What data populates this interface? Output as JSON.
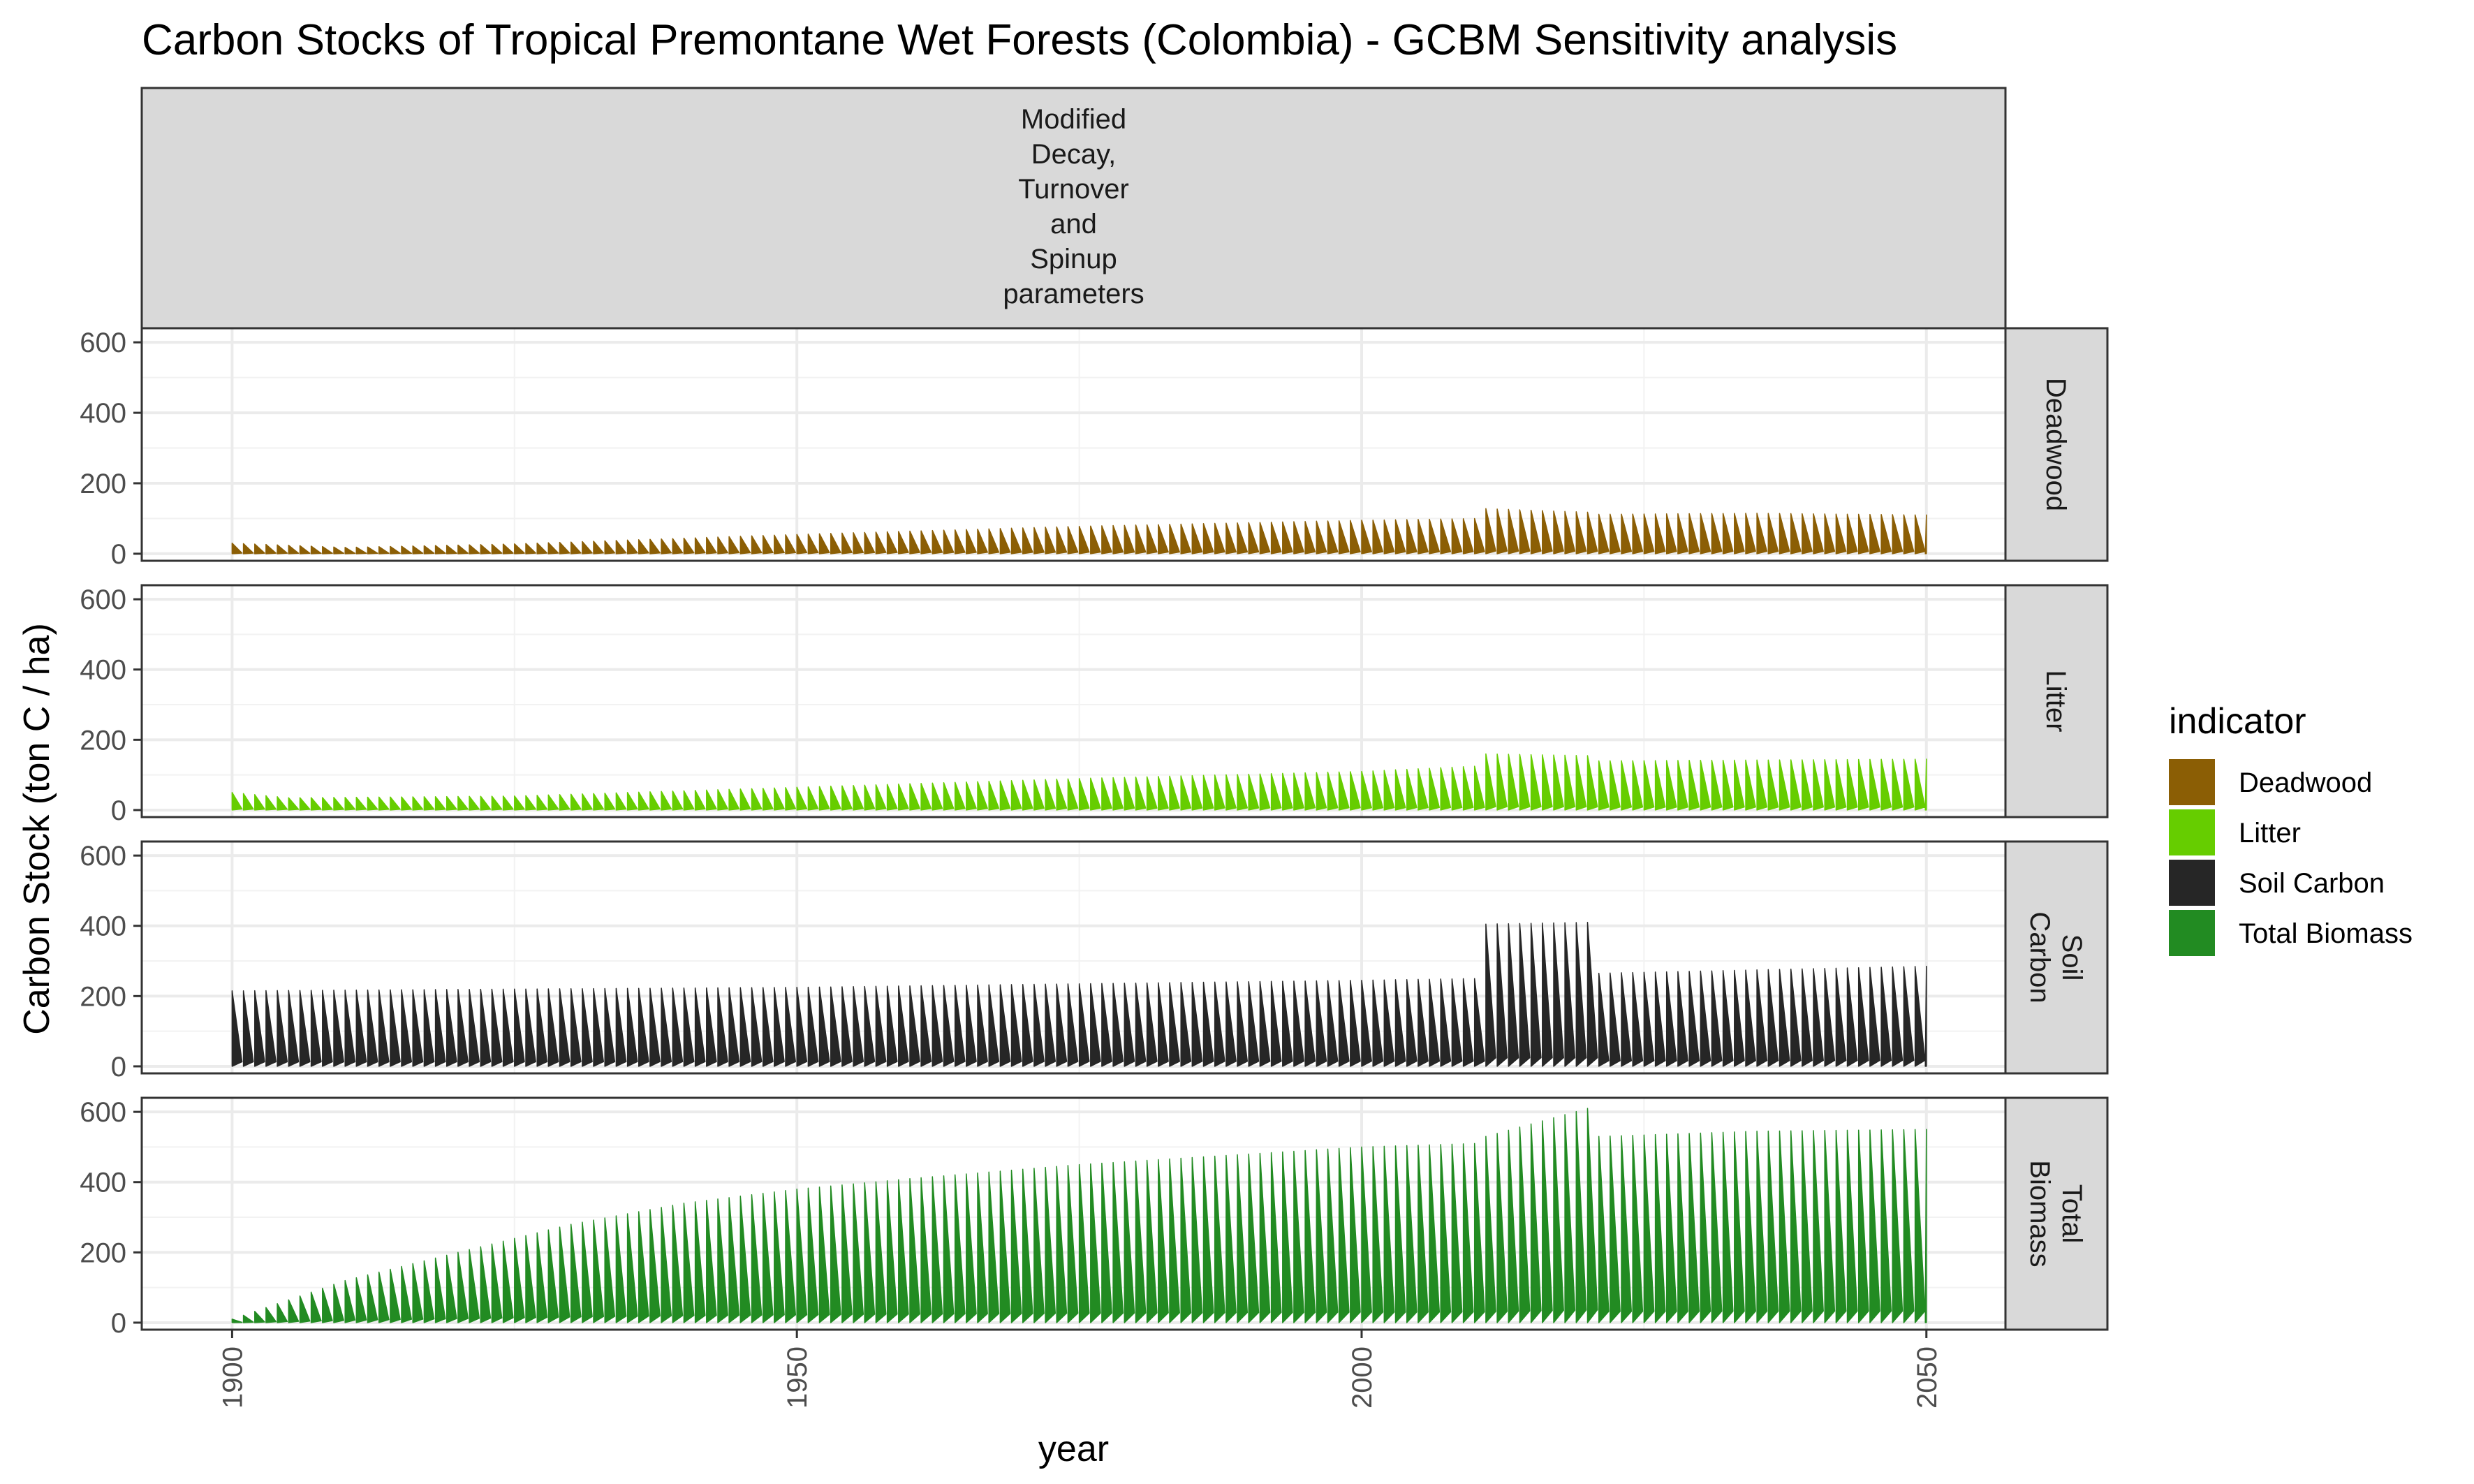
{
  "chart_data": {
    "type": "area",
    "title": "Carbon Stocks of Tropical Premontane Wet Forests (Colombia) - GCBM Sensitivity analysis",
    "xlabel": "year",
    "ylabel": "Carbon Stock (ton C / ha)",
    "xlim": [
      1892,
      2057
    ],
    "ylim": [
      -20,
      640
    ],
    "x_ticks": [
      "1900",
      "1950",
      "2000",
      "2050"
    ],
    "y_ticks": [
      "0",
      "200",
      "400",
      "600"
    ],
    "grid": true,
    "column_strip": "Modified Decay, Turnover and Spinup parameters",
    "legend": {
      "title": "indicator",
      "position": "right",
      "items": [
        {
          "name": "Deadwood",
          "color": "#8B5E05"
        },
        {
          "name": "Litter",
          "color": "#66CD00"
        },
        {
          "name": "Soil Carbon",
          "color": "#262626"
        },
        {
          "name": "Total Biomass",
          "color": "#228B22"
        }
      ]
    },
    "panels": [
      {
        "strip": "Deadwood",
        "color": "#8B5E05",
        "note_period": "one saw-tooth cycle per year, stock rises then drops within each year",
        "peaks": [
          {
            "year": 1900,
            "value": 30
          },
          {
            "year": 1910,
            "value": 18
          },
          {
            "year": 1925,
            "value": 28
          },
          {
            "year": 1950,
            "value": 55
          },
          {
            "year": 1975,
            "value": 78
          },
          {
            "year": 2000,
            "value": 95
          },
          {
            "year": 2010,
            "value": 100
          },
          {
            "year": 2011,
            "value": 128
          },
          {
            "year": 2020,
            "value": 118
          },
          {
            "year": 2021,
            "value": 112
          },
          {
            "year": 2035,
            "value": 115
          },
          {
            "year": 2050,
            "value": 110
          }
        ]
      },
      {
        "strip": "Litter",
        "color": "#66CD00",
        "peaks": [
          {
            "year": 1900,
            "value": 50
          },
          {
            "year": 1905,
            "value": 35
          },
          {
            "year": 1925,
            "value": 40
          },
          {
            "year": 1950,
            "value": 65
          },
          {
            "year": 1975,
            "value": 90
          },
          {
            "year": 2000,
            "value": 110
          },
          {
            "year": 2010,
            "value": 125
          },
          {
            "year": 2011,
            "value": 160
          },
          {
            "year": 2020,
            "value": 155
          },
          {
            "year": 2021,
            "value": 140
          },
          {
            "year": 2050,
            "value": 145
          }
        ]
      },
      {
        "strip": "Soil Carbon",
        "color": "#262626",
        "peaks": [
          {
            "year": 1900,
            "value": 215
          },
          {
            "year": 1950,
            "value": 225
          },
          {
            "year": 2000,
            "value": 245
          },
          {
            "year": 2010,
            "value": 250
          },
          {
            "year": 2011,
            "value": 405
          },
          {
            "year": 2020,
            "value": 410
          },
          {
            "year": 2021,
            "value": 265
          },
          {
            "year": 2050,
            "value": 285
          }
        ]
      },
      {
        "strip": "Total Biomass",
        "color": "#228B22",
        "peaks": [
          {
            "year": 1900,
            "value": 10
          },
          {
            "year": 1910,
            "value": 120
          },
          {
            "year": 1920,
            "value": 200
          },
          {
            "year": 1930,
            "value": 280
          },
          {
            "year": 1940,
            "value": 340
          },
          {
            "year": 1950,
            "value": 380
          },
          {
            "year": 1960,
            "value": 410
          },
          {
            "year": 1975,
            "value": 450
          },
          {
            "year": 2000,
            "value": 500
          },
          {
            "year": 2010,
            "value": 510
          },
          {
            "year": 2011,
            "value": 530
          },
          {
            "year": 2020,
            "value": 610
          },
          {
            "year": 2021,
            "value": 530
          },
          {
            "year": 2035,
            "value": 545
          },
          {
            "year": 2050,
            "value": 550
          }
        ]
      }
    ]
  }
}
